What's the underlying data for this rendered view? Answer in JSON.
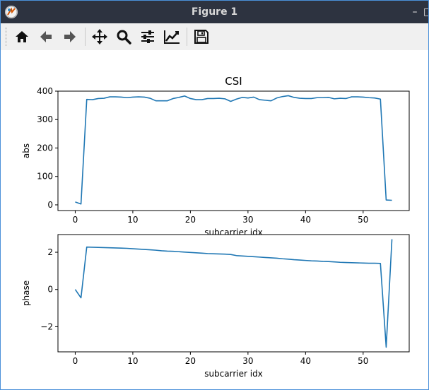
{
  "window": {
    "title": "Figure 1"
  },
  "toolbar": {
    "buttons": [
      {
        "name": "home",
        "icon": "home-icon"
      },
      {
        "name": "back",
        "icon": "arrow-left-icon"
      },
      {
        "name": "forward",
        "icon": "arrow-right-icon"
      },
      {
        "name": "pan",
        "icon": "move-icon"
      },
      {
        "name": "zoom",
        "icon": "magnifier-icon"
      },
      {
        "name": "configure-subplots",
        "icon": "sliders-icon"
      },
      {
        "name": "edit-axes",
        "icon": "line-chart-icon"
      },
      {
        "name": "save",
        "icon": "floppy-disk-icon"
      }
    ]
  },
  "chart_data": [
    {
      "type": "line",
      "title": "CSI",
      "xlabel": "subcarrier idx",
      "ylabel": "abs",
      "xlim": [
        -3,
        58
      ],
      "ylim": [
        -20,
        400
      ],
      "xticks": [
        0,
        10,
        20,
        30,
        40,
        50
      ],
      "yticks": [
        0,
        100,
        200,
        300,
        400
      ],
      "color": "#1f77b4",
      "series": [
        {
          "x": [
            0,
            1,
            2,
            3,
            4,
            5,
            6,
            7,
            8,
            9,
            10,
            11,
            12,
            13,
            14,
            15,
            16,
            17,
            18,
            19,
            20,
            21,
            22,
            23,
            24,
            25,
            26,
            27,
            28,
            29,
            30,
            31,
            32,
            33,
            34,
            35,
            36,
            37,
            38,
            39,
            40,
            41,
            42,
            43,
            44,
            45,
            46,
            47,
            48,
            49,
            50,
            51,
            52,
            53,
            54,
            55
          ],
          "values": [
            10,
            3,
            371,
            370,
            374,
            375,
            380,
            380,
            379,
            377,
            379,
            380,
            379,
            375,
            366,
            366,
            366,
            374,
            378,
            383,
            374,
            370,
            370,
            374,
            374,
            375,
            373,
            364,
            372,
            378,
            376,
            379,
            370,
            368,
            366,
            376,
            381,
            384,
            378,
            375,
            374,
            374,
            377,
            377,
            378,
            373,
            375,
            374,
            380,
            380,
            379,
            377,
            376,
            372,
            17,
            16
          ]
        }
      ]
    },
    {
      "type": "line",
      "title": "",
      "xlabel": "subcarrier idx",
      "ylabel": "phase",
      "xlim": [
        -3,
        58
      ],
      "ylim": [
        -3.35,
        2.95
      ],
      "xticks": [
        0,
        10,
        20,
        30,
        40,
        50
      ],
      "yticks": [
        -2,
        0,
        2
      ],
      "ytick_labels": [
        "−2",
        "0",
        "2"
      ],
      "color": "#1f77b4",
      "series": [
        {
          "x": [
            0,
            1,
            2,
            3,
            4,
            5,
            6,
            7,
            8,
            9,
            10,
            11,
            12,
            13,
            14,
            15,
            16,
            17,
            18,
            19,
            20,
            21,
            22,
            23,
            24,
            25,
            26,
            27,
            28,
            29,
            30,
            31,
            32,
            33,
            34,
            35,
            36,
            37,
            38,
            39,
            40,
            41,
            42,
            43,
            44,
            45,
            46,
            47,
            48,
            49,
            50,
            51,
            52,
            53,
            54,
            55
          ],
          "values": [
            0,
            -0.45,
            2.28,
            2.27,
            2.26,
            2.25,
            2.24,
            2.23,
            2.22,
            2.21,
            2.19,
            2.17,
            2.15,
            2.13,
            2.11,
            2.08,
            2.06,
            2.05,
            2.03,
            2.01,
            1.99,
            1.97,
            1.95,
            1.93,
            1.92,
            1.91,
            1.9,
            1.88,
            1.82,
            1.8,
            1.78,
            1.76,
            1.74,
            1.72,
            1.7,
            1.68,
            1.65,
            1.63,
            1.6,
            1.58,
            1.56,
            1.54,
            1.53,
            1.51,
            1.5,
            1.48,
            1.46,
            1.45,
            1.44,
            1.43,
            1.42,
            1.41,
            1.41,
            1.4,
            -3.1,
            2.7
          ]
        }
      ]
    }
  ]
}
